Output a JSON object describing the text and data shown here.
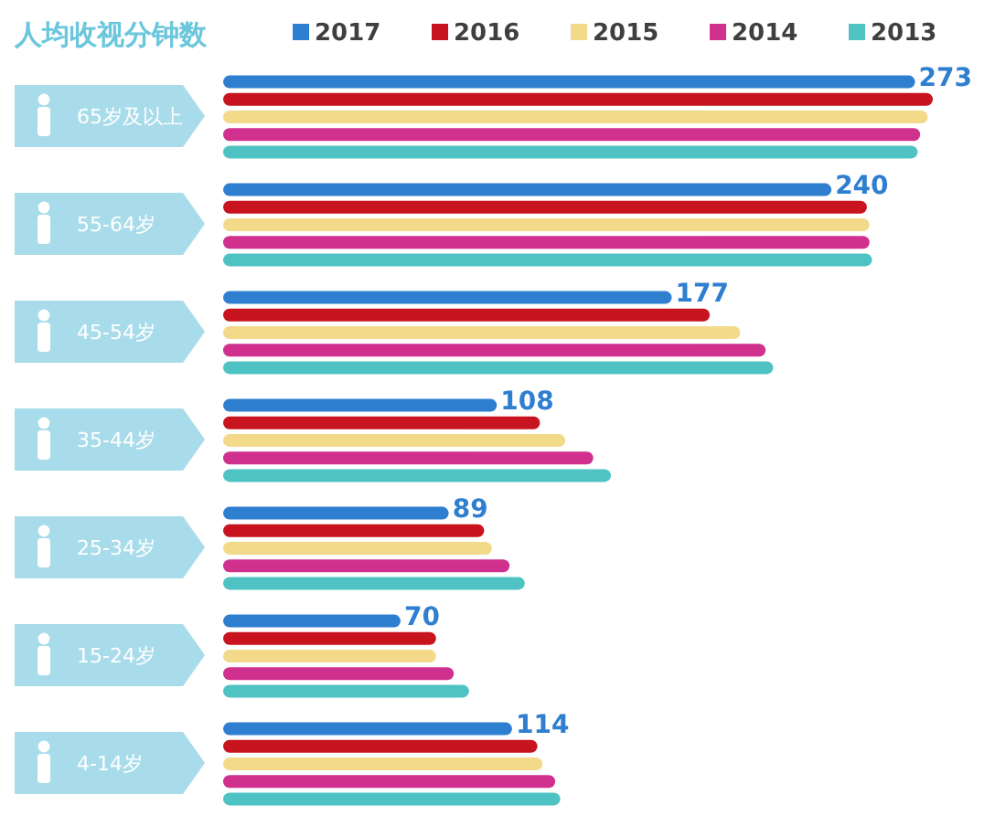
{
  "chart_data": {
    "type": "bar",
    "orientation": "horizontal",
    "title": "人均收视分钟数",
    "legend": "top",
    "categories": [
      "65岁及以上",
      "55-64岁",
      "45-54岁",
      "35-44岁",
      "25-34岁",
      "15-24岁",
      "4-14岁"
    ],
    "series": [
      {
        "name": "2017",
        "color": "#2e7fd0",
        "values": [
          273,
          240,
          177,
          108,
          89,
          70,
          114
        ],
        "value_labels": [
          "273",
          "240",
          "177",
          "108",
          "89",
          "70",
          "114"
        ]
      },
      {
        "name": "2016",
        "color": "#c8141e",
        "values": [
          280,
          254,
          192,
          125,
          103,
          84,
          124
        ]
      },
      {
        "name": "2015",
        "color": "#f3d98a",
        "values": [
          278,
          255,
          204,
          135,
          106,
          84,
          126
        ]
      },
      {
        "name": "2014",
        "color": "#d0318f",
        "values": [
          275,
          255,
          214,
          146,
          113,
          91,
          131
        ]
      },
      {
        "name": "2013",
        "color": "#4fc3c3",
        "values": [
          274,
          256,
          217,
          153,
          119,
          97,
          133
        ]
      }
    ]
  }
}
